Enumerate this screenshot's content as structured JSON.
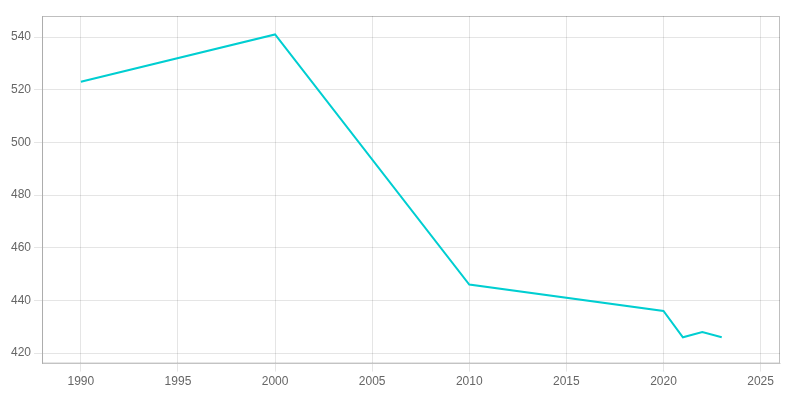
{
  "chart_data": {
    "type": "line",
    "x": [
      1990,
      2000,
      2010,
      2020,
      2021,
      2022,
      2023
    ],
    "values": [
      523,
      541,
      446,
      436,
      426,
      428,
      426
    ],
    "color": "#00CED1",
    "xlim": [
      1988,
      2026
    ],
    "ylim": [
      416,
      548
    ],
    "xticks": [
      1990,
      1995,
      2000,
      2005,
      2010,
      2015,
      2020,
      2025
    ],
    "yticks": [
      420,
      440,
      460,
      480,
      500,
      520,
      540
    ],
    "grid": true
  }
}
